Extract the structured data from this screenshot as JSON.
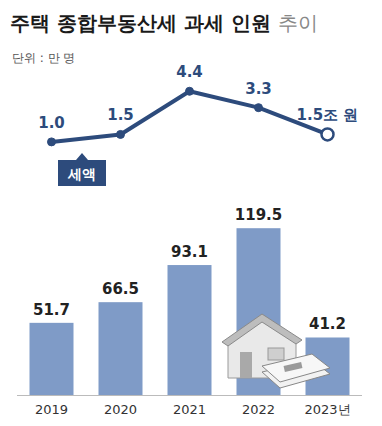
{
  "chart_data": {
    "type": "bar",
    "title": "주택 종합부동산세 과세 인원 추이",
    "subtitle": "단위 : 만 명",
    "categories": [
      "2019",
      "2020",
      "2021",
      "2022",
      "2023년"
    ],
    "series": [
      {
        "type": "bar",
        "color": "#7f9bc7",
        "values": [
          51.7,
          66.5,
          93.1,
          119.5,
          41.2
        ]
      },
      {
        "name": "세액",
        "type": "line",
        "axis": "y2",
        "color": "#2d4b7c",
        "marker": "circle",
        "values": [
          1.0,
          1.5,
          4.4,
          3.3,
          1.5
        ],
        "value_labels": [
          "1.0",
          "1.5",
          "4.4",
          "3.3",
          "1.5조 원"
        ]
      }
    ],
    "ylim": [
      0,
      240
    ],
    "y2lim": [
      -16,
      6.5
    ],
    "data_labels": true,
    "tick_labels": "x",
    "grid": false
  }
}
